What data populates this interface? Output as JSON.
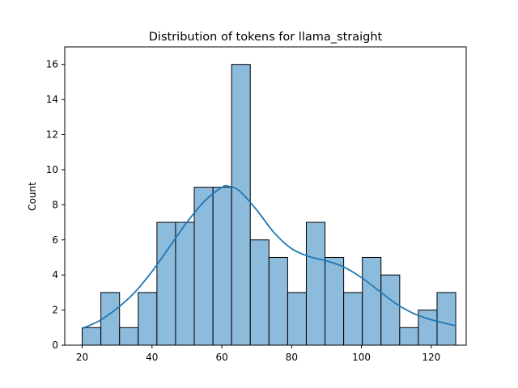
{
  "chart_data": {
    "type": "bar",
    "subtype": "histogram_with_kde",
    "title": "Distribution of tokens for llama_straight",
    "xlabel": "",
    "ylabel": "Count",
    "xlim": [
      15,
      130
    ],
    "ylim": [
      0,
      17
    ],
    "xticks": [
      20,
      40,
      60,
      80,
      100,
      120
    ],
    "yticks": [
      0,
      2,
      4,
      6,
      8,
      10,
      12,
      14,
      16
    ],
    "grid": false,
    "bar_color": "#8dbbdc",
    "bar_edge_color": "#000000",
    "kde_color": "#1f77b4",
    "bins": [
      {
        "start": 20.0,
        "end": 25.35,
        "count": 1
      },
      {
        "start": 25.35,
        "end": 30.7,
        "count": 3
      },
      {
        "start": 30.7,
        "end": 36.05,
        "count": 1
      },
      {
        "start": 36.05,
        "end": 41.4,
        "count": 3
      },
      {
        "start": 41.4,
        "end": 46.75,
        "count": 7
      },
      {
        "start": 46.75,
        "end": 52.1,
        "count": 7
      },
      {
        "start": 52.1,
        "end": 57.45,
        "count": 9
      },
      {
        "start": 57.45,
        "end": 62.8,
        "count": 9
      },
      {
        "start": 62.8,
        "end": 68.15,
        "count": 16
      },
      {
        "start": 68.15,
        "end": 73.5,
        "count": 6
      },
      {
        "start": 73.5,
        "end": 78.85,
        "count": 5
      },
      {
        "start": 78.85,
        "end": 84.2,
        "count": 3
      },
      {
        "start": 84.2,
        "end": 89.55,
        "count": 7
      },
      {
        "start": 89.55,
        "end": 94.9,
        "count": 5
      },
      {
        "start": 94.9,
        "end": 100.25,
        "count": 3
      },
      {
        "start": 100.25,
        "end": 105.6,
        "count": 5
      },
      {
        "start": 105.6,
        "end": 110.95,
        "count": 4
      },
      {
        "start": 110.95,
        "end": 116.3,
        "count": 1
      },
      {
        "start": 116.3,
        "end": 121.65,
        "count": 2
      },
      {
        "start": 121.65,
        "end": 127.0,
        "count": 3
      }
    ],
    "kde": [
      [
        20,
        0.95
      ],
      [
        25,
        1.4
      ],
      [
        30,
        2.1
      ],
      [
        35,
        3.0
      ],
      [
        40,
        4.2
      ],
      [
        45,
        5.6
      ],
      [
        50,
        7.0
      ],
      [
        55,
        8.2
      ],
      [
        60,
        9.0
      ],
      [
        62,
        9.05
      ],
      [
        65,
        8.8
      ],
      [
        70,
        7.7
      ],
      [
        75,
        6.4
      ],
      [
        80,
        5.5
      ],
      [
        85,
        5.05
      ],
      [
        90,
        4.8
      ],
      [
        95,
        4.45
      ],
      [
        100,
        3.85
      ],
      [
        105,
        3.1
      ],
      [
        110,
        2.35
      ],
      [
        115,
        1.8
      ],
      [
        120,
        1.45
      ],
      [
        127,
        1.1
      ]
    ]
  }
}
